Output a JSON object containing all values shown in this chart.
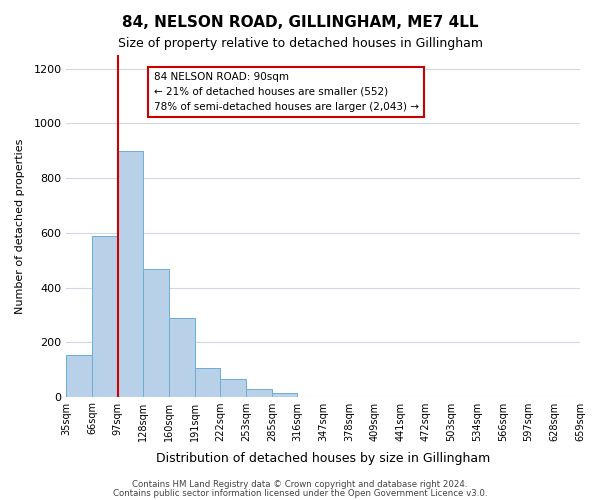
{
  "title": "84, NELSON ROAD, GILLINGHAM, ME7 4LL",
  "subtitle": "Size of property relative to detached houses in Gillingham",
  "xlabel": "Distribution of detached houses by size in Gillingham",
  "ylabel": "Number of detached properties",
  "footer_lines": [
    "Contains HM Land Registry data © Crown copyright and database right 2024.",
    "Contains public sector information licensed under the Open Government Licence v3.0."
  ],
  "bin_labels": [
    "35sqm",
    "66sqm",
    "97sqm",
    "128sqm",
    "160sqm",
    "191sqm",
    "222sqm",
    "253sqm",
    "285sqm",
    "316sqm",
    "347sqm",
    "378sqm",
    "409sqm",
    "441sqm",
    "472sqm",
    "503sqm",
    "534sqm",
    "566sqm",
    "597sqm",
    "628sqm",
    "659sqm"
  ],
  "bar_values": [
    155,
    590,
    900,
    470,
    290,
    105,
    65,
    30,
    15,
    0,
    0,
    0,
    0,
    0,
    0,
    0,
    0,
    0,
    0,
    0
  ],
  "bar_color": "#b8d0e8",
  "bar_edge_color": "#6aaed6",
  "ylim": [
    0,
    1250
  ],
  "yticks": [
    0,
    200,
    400,
    600,
    800,
    1000,
    1200
  ],
  "red_line_x": 2,
  "annotation_title": "84 NELSON ROAD: 90sqm",
  "annotation_line1": "← 21% of detached houses are smaller (552)",
  "annotation_line2": "78% of semi-detached houses are larger (2,043) →",
  "annotation_box_color": "#ffffff",
  "annotation_box_edge": "#cc0000",
  "red_line_color": "#cc0000",
  "background_color": "#ffffff",
  "grid_color": "#d0d8e8"
}
